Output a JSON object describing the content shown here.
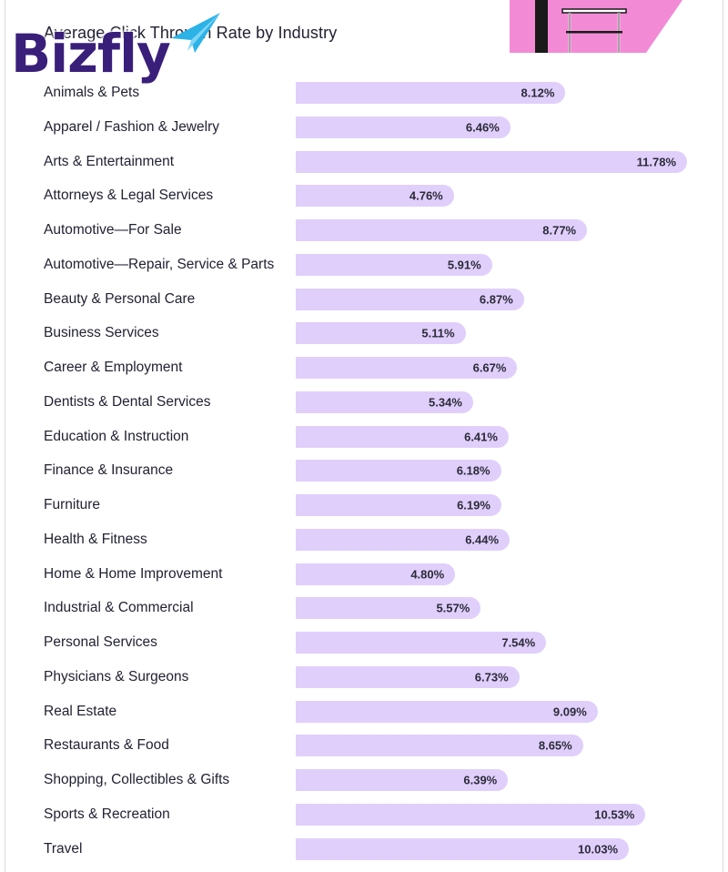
{
  "logo": {
    "text": "Bizfly"
  },
  "chart_data": {
    "type": "bar",
    "orientation": "horizontal",
    "title": "Average Click Through Rate by Industry",
    "categories": [
      "Animals & Pets",
      "Apparel / Fashion & Jewelry",
      "Arts & Entertainment",
      "Attorneys & Legal Services",
      "Automotive—For Sale",
      "Automotive—Repair, Service & Parts",
      "Beauty & Personal Care",
      "Business Services",
      "Career & Employment",
      "Dentists & Dental Services",
      "Education & Instruction",
      "Finance & Insurance",
      "Furniture",
      "Health & Fitness",
      "Home & Home Improvement",
      "Industrial & Commercial",
      "Personal Services",
      "Physicians & Surgeons",
      "Real Estate",
      "Restaurants & Food",
      "Shopping, Collectibles & Gifts",
      "Sports & Recreation",
      "Travel"
    ],
    "values": [
      8.12,
      6.46,
      11.78,
      4.76,
      8.77,
      5.91,
      6.87,
      5.11,
      6.67,
      5.34,
      6.41,
      6.18,
      6.19,
      6.44,
      4.8,
      5.57,
      7.54,
      6.73,
      9.09,
      8.65,
      6.39,
      10.53,
      10.03
    ],
    "value_labels": [
      "8.12%",
      "6.46%",
      "11.78%",
      "4.76%",
      "8.77%",
      "5.91%",
      "6.87%",
      "5.11%",
      "6.67%",
      "5.34%",
      "6.41%",
      "6.18%",
      "6.19%",
      "6.44%",
      "4.80%",
      "5.57%",
      "7.54%",
      "6.73%",
      "9.09%",
      "8.65%",
      "6.39%",
      "10.53%",
      "10.03%"
    ],
    "unit": "%",
    "xlim": [
      0,
      12
    ],
    "grid": false,
    "bar_color": "#e0cffb"
  }
}
